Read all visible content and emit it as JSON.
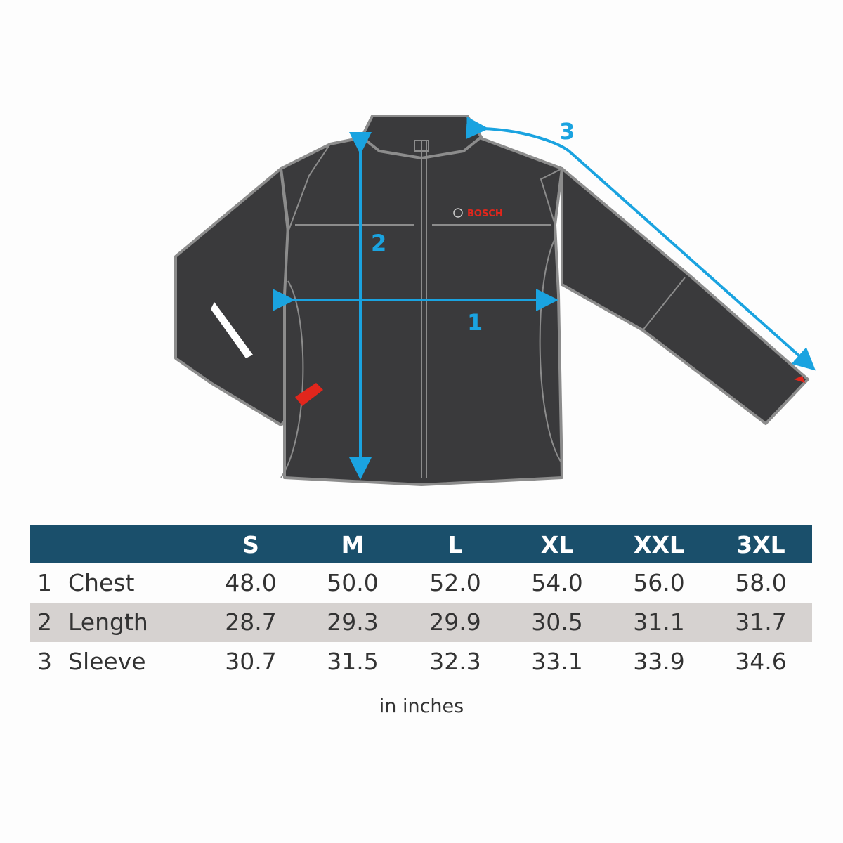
{
  "brand_logo": "BOSCH",
  "measure_markers": {
    "chest": "1",
    "length": "2",
    "sleeve": "3"
  },
  "colors": {
    "header": "#1a4f6b",
    "alt_row": "#d6d2d0",
    "arrow": "#1aa3e0",
    "jacket": "#3a3a3c",
    "accent_red": "#e1261c"
  },
  "table": {
    "sizes": [
      "S",
      "M",
      "L",
      "XL",
      "XXL",
      "3XL"
    ],
    "rows": [
      {
        "num": "1",
        "label": "Chest",
        "values": [
          "48.0",
          "50.0",
          "52.0",
          "54.0",
          "56.0",
          "58.0"
        ]
      },
      {
        "num": "2",
        "label": "Length",
        "values": [
          "28.7",
          "29.3",
          "29.9",
          "30.5",
          "31.1",
          "31.7"
        ]
      },
      {
        "num": "3",
        "label": "Sleeve",
        "values": [
          "30.7",
          "31.5",
          "32.3",
          "33.1",
          "33.9",
          "34.6"
        ]
      }
    ]
  },
  "unit_note": "in inches"
}
